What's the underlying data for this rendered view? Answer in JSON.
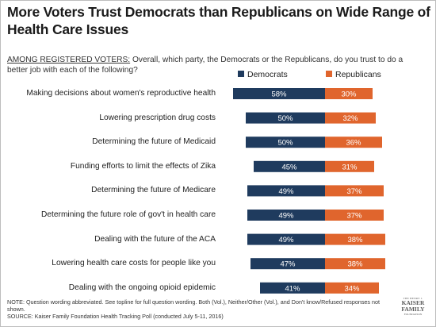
{
  "title": "More Voters Trust Democrats than Republicans on Wide Range of Health Care Issues",
  "subtitle_lead": "AMONG REGISTERED VOTERS:",
  "subtitle_rest": " Overall, which party, the Democrats or the Republicans, do you trust to do a  better job with each of the following?",
  "notes": {
    "note": "NOTE: Question wording abbreviated. See topline for full question wording. Both (Vol.), Neither/Other (Vol.), and Don't know/Refused responses not shown.",
    "source": "SOURCE: Kaiser Family Foundation Health Tracking Poll (conducted July 5-11, 2016)"
  },
  "logo": {
    "line1": "THE HENRY J.",
    "line2": "KAISER",
    "line3": "FAMILY",
    "line4": "FOUNDATION"
  },
  "colors": {
    "democrats": "#1f3b5e",
    "republicans": "#e0652d"
  },
  "chart_data": {
    "type": "bar",
    "stacked": true,
    "orientation": "horizontal",
    "categories": [
      "Making decisions about women's reproductive health",
      "Lowering prescription drug costs",
      "Determining the future of Medicaid",
      "Funding efforts to limit the effects of Zika",
      "Determining the future of Medicare",
      "Determining the future role of gov't in health care",
      "Dealing with the future of the ACA",
      "Lowering health care costs for people like you",
      "Dealing with the ongoing opioid epidemic"
    ],
    "series": [
      {
        "name": "Democrats",
        "values": [
          58,
          50,
          50,
          45,
          49,
          49,
          49,
          47,
          41
        ],
        "labels": [
          "58%",
          "50%",
          "50%",
          "45%",
          "49%",
          "49%",
          "49%",
          "47%",
          "41%"
        ]
      },
      {
        "name": "Republicans",
        "values": [
          30,
          32,
          36,
          31,
          37,
          37,
          38,
          38,
          34
        ],
        "labels": [
          "30%",
          "32%",
          "36%",
          "31%",
          "37%",
          "37%",
          "38%",
          "38%",
          "34%"
        ]
      }
    ],
    "legend": "top",
    "grid": false
  }
}
